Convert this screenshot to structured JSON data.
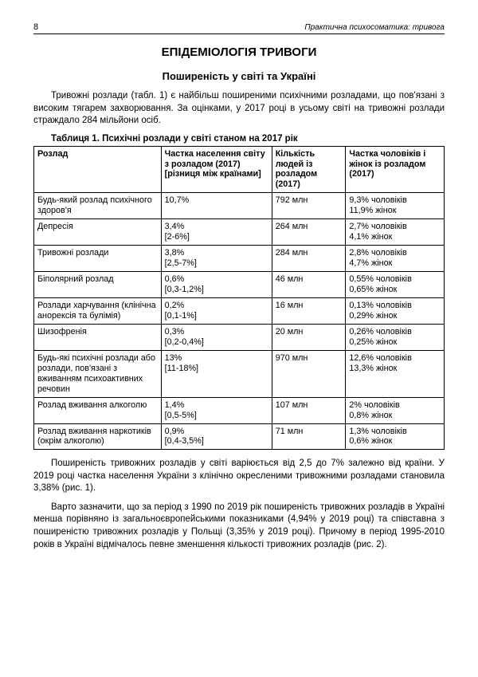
{
  "header": {
    "page_number": "8",
    "running_title": "Практична психосоматика: тривога"
  },
  "titles": {
    "main": "ЕПІДЕМІОЛОГІЯ ТРИВОГИ",
    "sub": "Поширеність у світі та Україні"
  },
  "paragraphs": {
    "intro": "Тривожні розлади (табл. 1) є найбільш поширеними психічними розладами, що пов'язані з високим тягарем захворювання. За оцінками, у 2017 році в усьому світі на тривожні розлади страждало 284 мільйони осіб.",
    "after1": "Поширеність тривожних розладів у світі варіюється від 2,5 до 7% залежно від країни. У 2019 році частка населення України з клінічно окресленими тривожними розладами становила 3,38% (рис. 1).",
    "after2": "Варто зазначити, що за період з 1990 по 2019 рік поширеність тривожних розладів в Україні менша порівняно із загальноєвропейськими показниками (4,94% у 2019 році) та співставна з поширеністю тривожних розладів у Польщі (3,35% у 2019 році). Причому в період 1995-2010 років в Україні відмічалось певне зменшення кількості тривожних розладів (рис. 2)."
  },
  "table": {
    "caption": "Таблиця 1. Психічні розлади у світі станом на 2017 рік",
    "columns": [
      "Розлад",
      "Частка населення світу з розладом (2017) [різниця між країнами]",
      "Кількість людей із розладом (2017)",
      "Частка чоловіків і жінок із розладом (2017)"
    ],
    "rows": [
      [
        "Будь-який розлад психічного здоров'я",
        "10,7%",
        "792 млн",
        "9,3% чоловіків\n11,9% жінок"
      ],
      [
        "Депресія",
        "3,4%\n[2-6%]",
        "264 млн",
        "2,7% чоловіків\n4,1% жінок"
      ],
      [
        "Тривожні розлади",
        "3,8%\n[2,5-7%]",
        "284 млн",
        "2,8% чоловіків\n4,7% жінок"
      ],
      [
        "Біполярний розлад",
        "0,6%\n[0,3-1,2%]",
        "46 млн",
        "0,55% чоловіків\n0,65% жінок"
      ],
      [
        "Розлади харчування (клінічна анорексія та булімія)",
        "0,2%\n[0,1-1%]",
        "16 млн",
        "0,13% чоловіків\n0,29% жінок"
      ],
      [
        "Шизофренія",
        "0,3%\n[0,2-0,4%]",
        "20 млн",
        "0,26% чоловіків\n0,25% жінок"
      ],
      [
        "Будь-які психічні розлади або розлади, пов'язані з вживанням психоактивних речовин",
        "13%\n[11-18%]",
        "970 млн",
        "12,6% чоловіків\n13,3% жінок"
      ],
      [
        "Розлад вживання алкоголю",
        "1,4%\n[0,5-5%]",
        "107 млн",
        "2% чоловіків\n0,8% жінок"
      ],
      [
        "Розлад вживання наркотиків (окрім алкоголю)",
        "0,9%\n[0,4-3,5%]",
        "71 млн",
        "1,3% чоловіків\n0,6% жінок"
      ]
    ]
  }
}
